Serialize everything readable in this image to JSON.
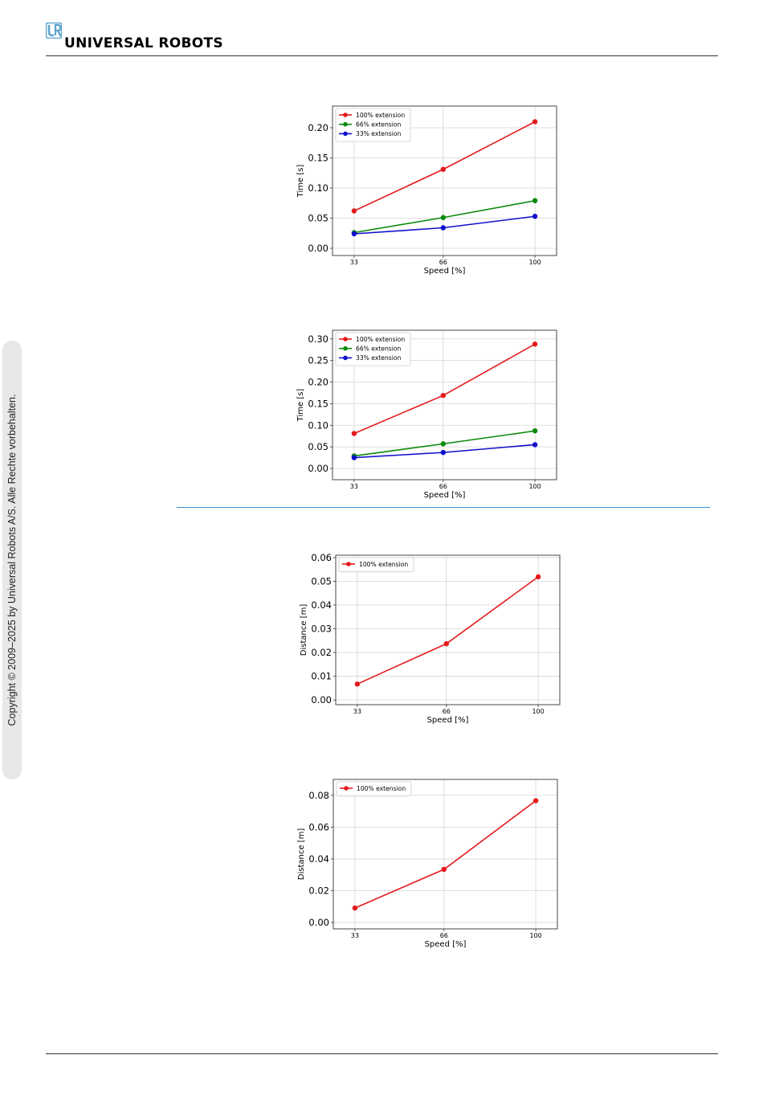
{
  "header": {
    "brand": "UNIVERSAL ROBOTS",
    "logo_icon": "ur-logo-icon",
    "brand_color": "#5ba3d0"
  },
  "sidebar": {
    "copyright": "Copyright © 2009–2025 by Universal Robots A/S. Alle Rechte vorbehalten."
  },
  "chart_data": [
    {
      "type": "line",
      "x": [
        33,
        66,
        100
      ],
      "xlabel": "Speed [%]",
      "ylabel": "Time [s]",
      "ylim": [
        -0.012,
        0.236
      ],
      "yticks": [
        0.0,
        0.05,
        0.1,
        0.15,
        0.2
      ],
      "ytick_labels": [
        "0.00",
        "0.05",
        "0.10",
        "0.15",
        "0.20"
      ],
      "grid": true,
      "legend": "top-left",
      "series": [
        {
          "name": "100% extension",
          "color": "#e41a1c",
          "values": [
            0.062,
            0.131,
            0.21
          ]
        },
        {
          "name": "66% extension",
          "color": "#0a8a0a",
          "values": [
            0.026,
            0.051,
            0.079
          ]
        },
        {
          "name": "33% extension",
          "color": "#1010cc",
          "values": [
            0.024,
            0.034,
            0.053
          ]
        }
      ]
    },
    {
      "type": "line",
      "x": [
        33,
        66,
        100
      ],
      "xlabel": "Speed [%]",
      "ylabel": "Time [s]",
      "ylim": [
        -0.026,
        0.32
      ],
      "yticks": [
        0.0,
        0.05,
        0.1,
        0.15,
        0.2,
        0.25,
        0.3
      ],
      "ytick_labels": [
        "0.00",
        "0.05",
        "0.10",
        "0.15",
        "0.20",
        "0.25",
        "0.30"
      ],
      "grid": true,
      "legend": "top-left",
      "series": [
        {
          "name": "100% extension",
          "color": "#e41a1c",
          "values": [
            0.081,
            0.169,
            0.288
          ]
        },
        {
          "name": "66% extension",
          "color": "#0a8a0a",
          "values": [
            0.029,
            0.057,
            0.087
          ]
        },
        {
          "name": "33% extension",
          "color": "#1010cc",
          "values": [
            0.025,
            0.037,
            0.055
          ]
        }
      ]
    },
    {
      "type": "line",
      "x": [
        33,
        66,
        100
      ],
      "xlabel": "Speed [%]",
      "ylabel": "Distance [m]",
      "ylim": [
        -0.002,
        0.061
      ],
      "yticks": [
        0.0,
        0.01,
        0.02,
        0.03,
        0.04,
        0.05,
        0.06
      ],
      "ytick_labels": [
        "0.00",
        "0.01",
        "0.02",
        "0.03",
        "0.04",
        "0.05",
        "0.06"
      ],
      "grid": true,
      "legend": "top-left",
      "series": [
        {
          "name": "100% extension",
          "color": "#e41a1c",
          "values": [
            0.0067,
            0.0237,
            0.0519
          ]
        }
      ]
    },
    {
      "type": "line",
      "x": [
        33,
        66,
        100
      ],
      "xlabel": "Speed [%]",
      "ylabel": "Distance [m]",
      "ylim": [
        -0.004,
        0.09
      ],
      "yticks": [
        0.0,
        0.02,
        0.04,
        0.06,
        0.08
      ],
      "ytick_labels": [
        "0.00",
        "0.02",
        "0.04",
        "0.06",
        "0.08"
      ],
      "grid": true,
      "legend": "top-left",
      "series": [
        {
          "name": "100% extension",
          "color": "#e41a1c",
          "values": [
            0.0091,
            0.0334,
            0.0766
          ]
        }
      ]
    }
  ]
}
